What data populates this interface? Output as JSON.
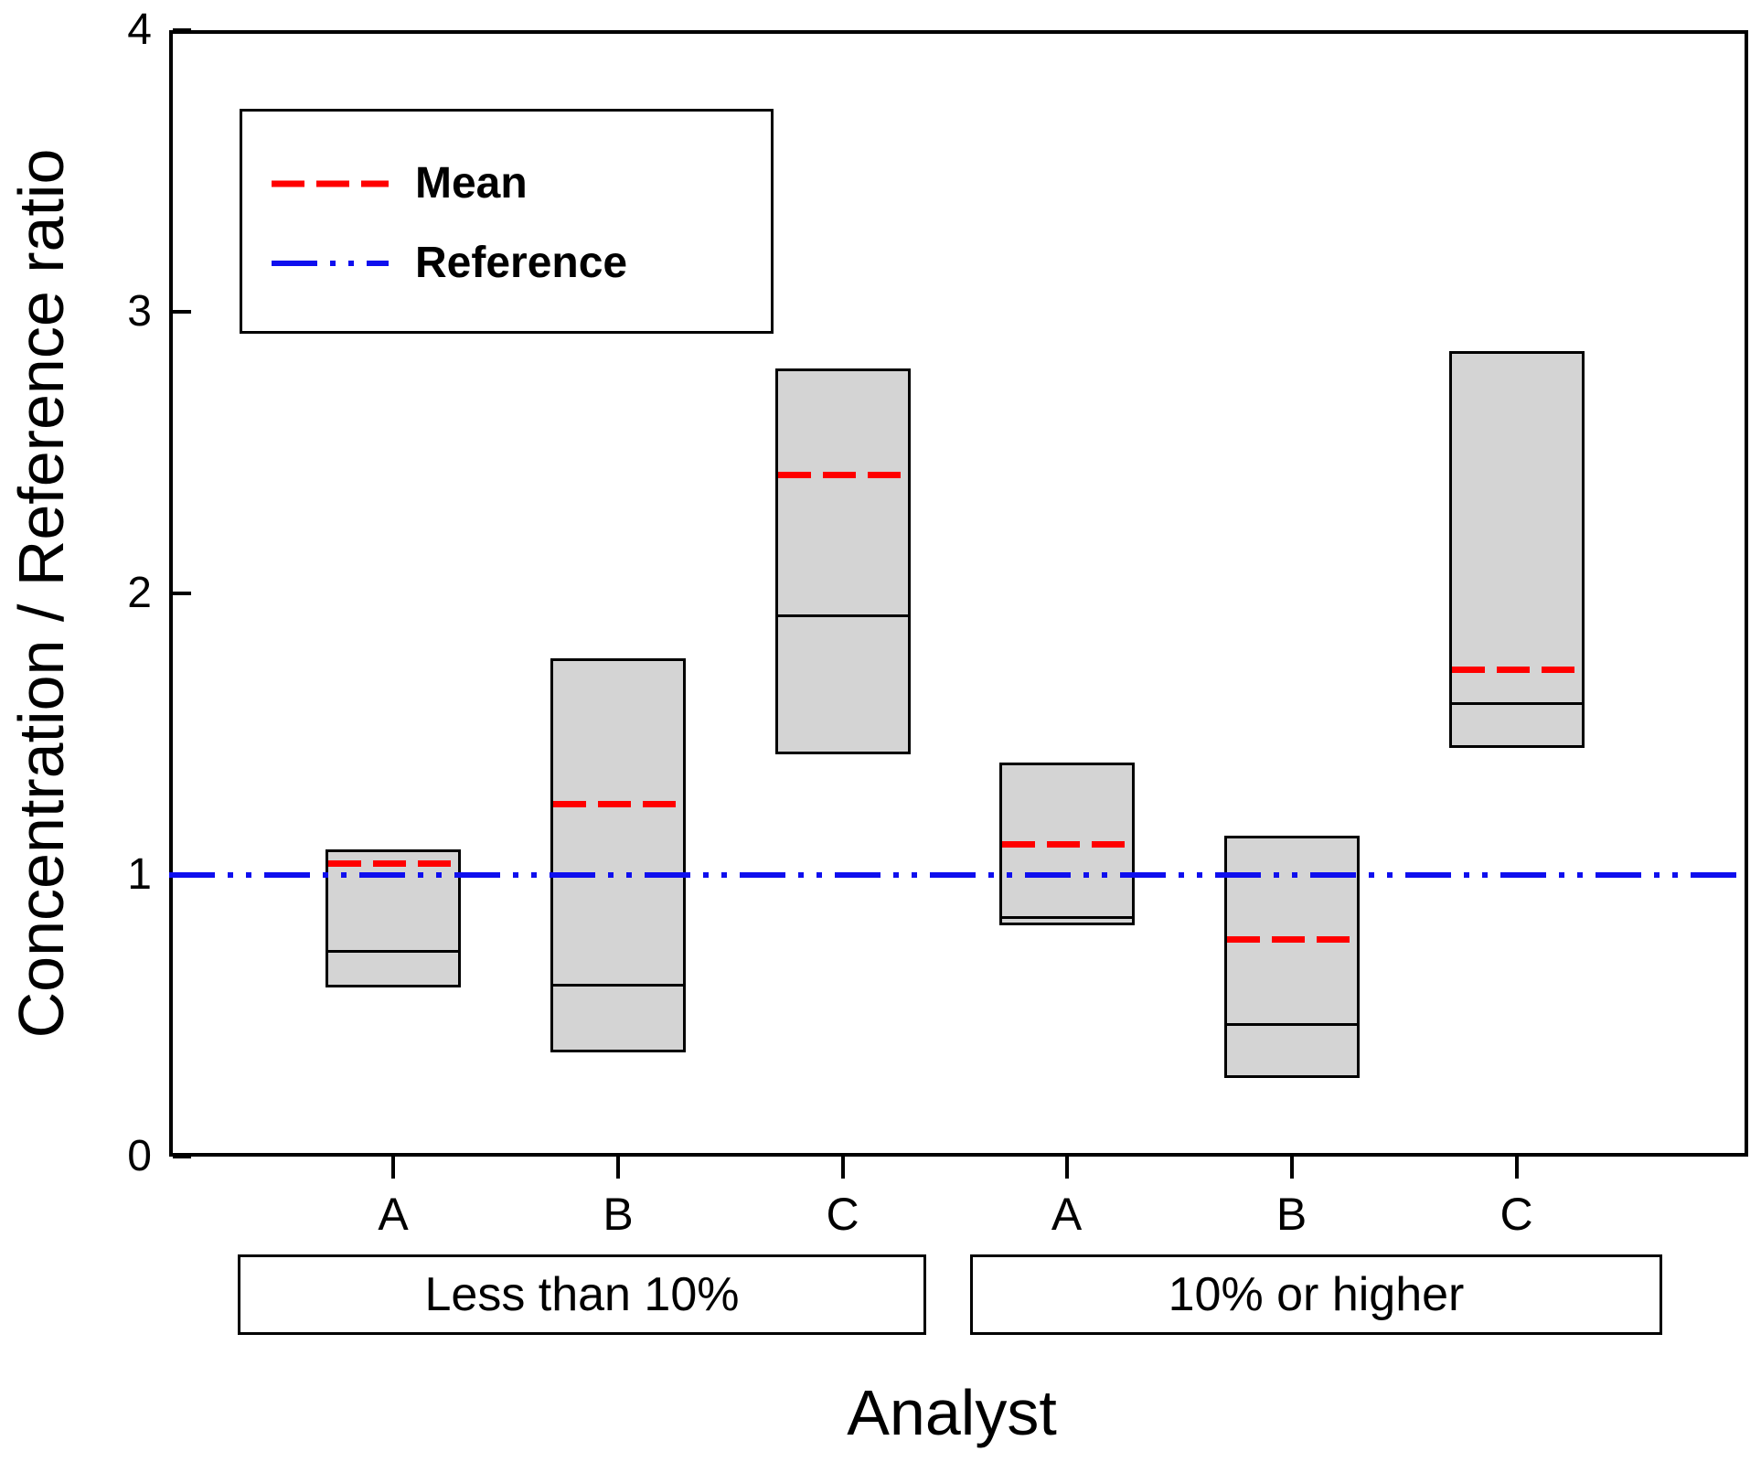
{
  "chart_data": {
    "type": "box",
    "title": "",
    "xlabel": "Analyst",
    "ylabel": "Concentration / Reference ratio",
    "ylim": [
      0,
      4
    ],
    "y_ticks": [
      0,
      1,
      2,
      3,
      4
    ],
    "grid": false,
    "box_fill_color": "#d4d4d4",
    "box_border_color": "#000000",
    "mean_line": {
      "label": "Mean",
      "color": "#ff0000",
      "style": "dashed"
    },
    "reference_line": {
      "label": "Reference",
      "value": 1.0,
      "color": "#0f0fee",
      "style": "dash-dot-dot"
    },
    "legend": [
      {
        "label": "Mean",
        "color": "#ff0000",
        "style": "dashed"
      },
      {
        "label": "Reference",
        "color": "#0f0fee",
        "style": "dash-dot-dot"
      }
    ],
    "legend_position": "top-left",
    "groups": [
      {
        "label": "Less than 10%",
        "categories": [
          "A",
          "B",
          "C"
        ],
        "boxes": [
          {
            "analyst": "A",
            "min": 0.6,
            "median": 0.73,
            "mean": 1.04,
            "max": 1.09
          },
          {
            "analyst": "B",
            "min": 0.37,
            "median": 0.61,
            "mean": 1.25,
            "max": 1.77
          },
          {
            "analyst": "C",
            "min": 1.43,
            "median": 1.92,
            "mean": 2.42,
            "max": 2.8
          }
        ]
      },
      {
        "label": "10% or higher",
        "categories": [
          "A",
          "B",
          "C"
        ],
        "boxes": [
          {
            "analyst": "A",
            "min": 0.82,
            "median": 0.85,
            "mean": 1.11,
            "max": 1.4
          },
          {
            "analyst": "B",
            "min": 0.28,
            "median": 0.47,
            "mean": 0.77,
            "max": 1.14
          },
          {
            "analyst": "C",
            "min": 1.45,
            "median": 1.61,
            "mean": 1.73,
            "max": 2.86
          }
        ]
      }
    ]
  }
}
